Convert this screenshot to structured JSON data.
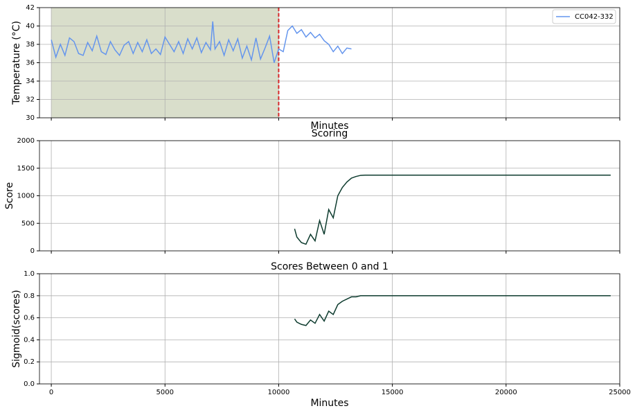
{
  "chart_data": [
    {
      "type": "line",
      "ylabel": "Temperature (°C)",
      "xlabel": "Minutes",
      "xlim": [
        -520,
        25000
      ],
      "ylim": [
        30,
        42
      ],
      "xticks": [
        0,
        5000,
        10000,
        15000,
        20000,
        25000
      ],
      "yticks": [
        30,
        32,
        34,
        36,
        38,
        40,
        42
      ],
      "grid": true,
      "legend": "upper right",
      "shade": [
        0,
        10000
      ],
      "shade_color": "#d9decb",
      "vline": 10000,
      "vline_color": "#d62728",
      "x": [
        0,
        200,
        400,
        600,
        800,
        1000,
        1200,
        1400,
        1600,
        1800,
        2000,
        2200,
        2400,
        2600,
        2800,
        3000,
        3200,
        3400,
        3600,
        3800,
        4000,
        4200,
        4400,
        4600,
        4800,
        5000,
        5200,
        5400,
        5600,
        5800,
        6000,
        6200,
        6400,
        6600,
        6800,
        7000,
        7100,
        7200,
        7400,
        7600,
        7800,
        8000,
        8200,
        8400,
        8600,
        8800,
        9000,
        9200,
        9400,
        9600,
        9800,
        10000,
        10200,
        10400,
        10600,
        10800,
        11000,
        11200,
        11400,
        11600,
        11800,
        12000,
        12200,
        12400,
        12600,
        12800,
        13000,
        13200
      ],
      "series": [
        {
          "name": "CC042-332",
          "color": "#6495ed",
          "values": [
            38.5,
            36.6,
            38.0,
            36.8,
            38.7,
            38.3,
            37.0,
            36.8,
            38.2,
            37.3,
            38.9,
            37.2,
            36.9,
            38.3,
            37.4,
            36.8,
            37.9,
            38.3,
            37.0,
            38.2,
            37.2,
            38.5,
            37.0,
            37.5,
            36.9,
            38.8,
            38.0,
            37.2,
            38.3,
            37.0,
            38.6,
            37.5,
            38.7,
            37.1,
            38.2,
            37.4,
            40.5,
            37.5,
            38.3,
            36.8,
            38.5,
            37.3,
            38.6,
            36.5,
            37.8,
            36.3,
            38.7,
            36.4,
            37.6,
            38.9,
            36.0,
            37.5,
            37.2,
            39.5,
            40.0,
            39.2,
            39.6,
            38.8,
            39.3,
            38.7,
            39.1,
            38.4,
            38.0,
            37.2,
            37.8,
            37.0,
            37.6,
            37.5
          ]
        }
      ]
    },
    {
      "type": "line",
      "title": "Scoring",
      "ylabel": "Score",
      "xlim": [
        -520,
        25000
      ],
      "ylim": [
        0,
        2000
      ],
      "xticks": [
        0,
        5000,
        10000,
        15000,
        20000,
        25000
      ],
      "yticks": [
        0,
        500,
        1000,
        1500,
        2000
      ],
      "grid": true,
      "x": [
        10700,
        10800,
        11000,
        11200,
        11400,
        11600,
        11800,
        12000,
        12200,
        12400,
        12600,
        12800,
        13000,
        13200,
        13400,
        13600,
        13800,
        24600
      ],
      "series": [
        {
          "color": "#0d3b2e",
          "values": [
            400,
            250,
            150,
            120,
            300,
            180,
            550,
            300,
            750,
            600,
            1000,
            1150,
            1250,
            1320,
            1350,
            1370,
            1375,
            1375
          ]
        }
      ]
    },
    {
      "type": "line",
      "title": "Scores Between 0 and 1",
      "ylabel": "Sigmoid(scores)",
      "xlabel": "Minutes",
      "xlim": [
        -520,
        25000
      ],
      "ylim": [
        0,
        1
      ],
      "xticks": [
        0,
        5000,
        10000,
        15000,
        20000,
        25000
      ],
      "yticks": [
        {
          "value": 0,
          "label": "0.0"
        },
        0.2,
        0.4,
        0.6,
        0.8,
        {
          "value": 1,
          "label": "1.0"
        }
      ],
      "grid": true,
      "xticklabels": true,
      "x": [
        10700,
        10800,
        11000,
        11200,
        11400,
        11600,
        11800,
        12000,
        12200,
        12400,
        12600,
        12800,
        13000,
        13200,
        13400,
        13600,
        13800,
        24600
      ],
      "series": [
        {
          "color": "#0d3b2e",
          "values": [
            0.59,
            0.56,
            0.54,
            0.53,
            0.58,
            0.55,
            0.63,
            0.57,
            0.66,
            0.63,
            0.72,
            0.75,
            0.77,
            0.79,
            0.79,
            0.8,
            0.8,
            0.8
          ]
        }
      ]
    }
  ]
}
